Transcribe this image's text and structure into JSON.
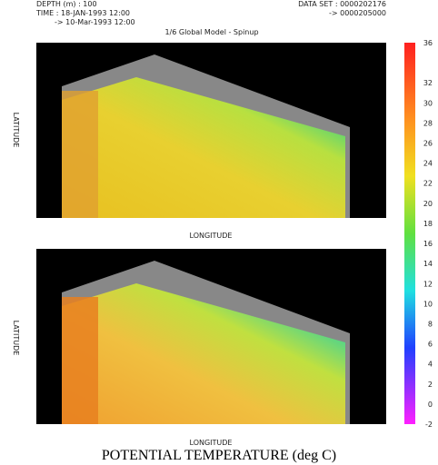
{
  "header": {
    "depth": "DEPTH (m) : 100",
    "time": "TIME : 18-JAN-1993 12:00",
    "time_end": "-> 10-Mar-1993 12:00",
    "dataset": "DATA SET : 0000202176",
    "dataset_end": "-> 0000205000",
    "model": "1/6 Global Model - Spinup"
  },
  "panels": [
    {
      "ylabel": "LATITUDE",
      "xlabel": "LONGITUDE"
    },
    {
      "ylabel": "LATITUDE",
      "xlabel": "LONGITUDE"
    }
  ],
  "colorbar": {
    "ticks": [
      36,
      32,
      30,
      28,
      26,
      24,
      22,
      20,
      18,
      16,
      14,
      12,
      10,
      8,
      6,
      4,
      2,
      0,
      -2
    ]
  },
  "footer": {
    "title": "POTENTIAL TEMPERATURE (deg C)"
  }
}
